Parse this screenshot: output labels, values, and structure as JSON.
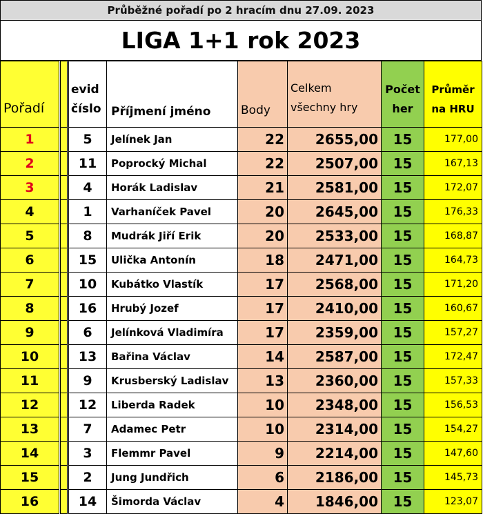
{
  "header": {
    "subtitle": "Průběžné pořadí po 2 hracím dnu 27.09. 2023",
    "title": "LIGA 1+1 rok 2023"
  },
  "columns": {
    "rank": "Pořadí",
    "evid_line1": "evid",
    "evid_line2": "číslo",
    "name": "Příjmení jméno",
    "points": "Body",
    "total_line1": "Celkem",
    "total_line2": "všechny hry",
    "count_line1": "Počet",
    "count_line2": "her",
    "avg_line1": "Průměr",
    "avg_line2": "na HRU"
  },
  "rows": [
    {
      "rank": "1",
      "evid": "5",
      "name": "Jelínek Jan",
      "points": "22",
      "total": "2655,00",
      "games": "15",
      "avg": "177,00"
    },
    {
      "rank": "2",
      "evid": "11",
      "name": "Poprocký Michal",
      "points": "22",
      "total": "2507,00",
      "games": "15",
      "avg": "167,13"
    },
    {
      "rank": "3",
      "evid": "4",
      "name": "Horák Ladislav",
      "points": "21",
      "total": "2581,00",
      "games": "15",
      "avg": "172,07"
    },
    {
      "rank": "4",
      "evid": "1",
      "name": "Varhaníček Pavel",
      "points": "20",
      "total": "2645,00",
      "games": "15",
      "avg": "176,33"
    },
    {
      "rank": "5",
      "evid": "8",
      "name": "Mudrák Jiří Erik",
      "points": "20",
      "total": "2533,00",
      "games": "15",
      "avg": "168,87"
    },
    {
      "rank": "6",
      "evid": "15",
      "name": "Ulička Antonín",
      "points": "18",
      "total": "2471,00",
      "games": "15",
      "avg": "164,73"
    },
    {
      "rank": "7",
      "evid": "10",
      "name": "Kubátko Vlastík",
      "points": "17",
      "total": "2568,00",
      "games": "15",
      "avg": "171,20"
    },
    {
      "rank": "8",
      "evid": "16",
      "name": "Hrubý Jozef",
      "points": "17",
      "total": "2410,00",
      "games": "15",
      "avg": "160,67"
    },
    {
      "rank": "9",
      "evid": "6",
      "name": "Jelínková Vladimíra",
      "points": "17",
      "total": "2359,00",
      "games": "15",
      "avg": "157,27"
    },
    {
      "rank": "10",
      "evid": "13",
      "name": "Bařina Václav",
      "points": "14",
      "total": "2587,00",
      "games": "15",
      "avg": "172,47"
    },
    {
      "rank": "11",
      "evid": "9",
      "name": "Krusberský Ladislav",
      "points": "13",
      "total": "2360,00",
      "games": "15",
      "avg": "157,33"
    },
    {
      "rank": "12",
      "evid": "12",
      "name": "Liberda Radek",
      "points": "10",
      "total": "2348,00",
      "games": "15",
      "avg": "156,53"
    },
    {
      "rank": "13",
      "evid": "7",
      "name": "Adamec Petr",
      "points": "10",
      "total": "2314,00",
      "games": "15",
      "avg": "154,27"
    },
    {
      "rank": "14",
      "evid": "3",
      "name": "Flemmr Pavel",
      "points": "9",
      "total": "2214,00",
      "games": "15",
      "avg": "147,60"
    },
    {
      "rank": "15",
      "evid": "2",
      "name": "Jung Jundřich",
      "points": "6",
      "total": "2186,00",
      "games": "15",
      "avg": "145,73"
    },
    {
      "rank": "16",
      "evid": "14",
      "name": "Šimorda Václav",
      "points": "4",
      "total": "1846,00",
      "games": "15",
      "avg": "123,07"
    }
  ],
  "colors": {
    "rank_bg": "#ffff33",
    "points_bg": "#f8cbad",
    "games_bg": "#92d050",
    "avg_bg": "#ffff00",
    "podium_text": "#e0001b"
  }
}
